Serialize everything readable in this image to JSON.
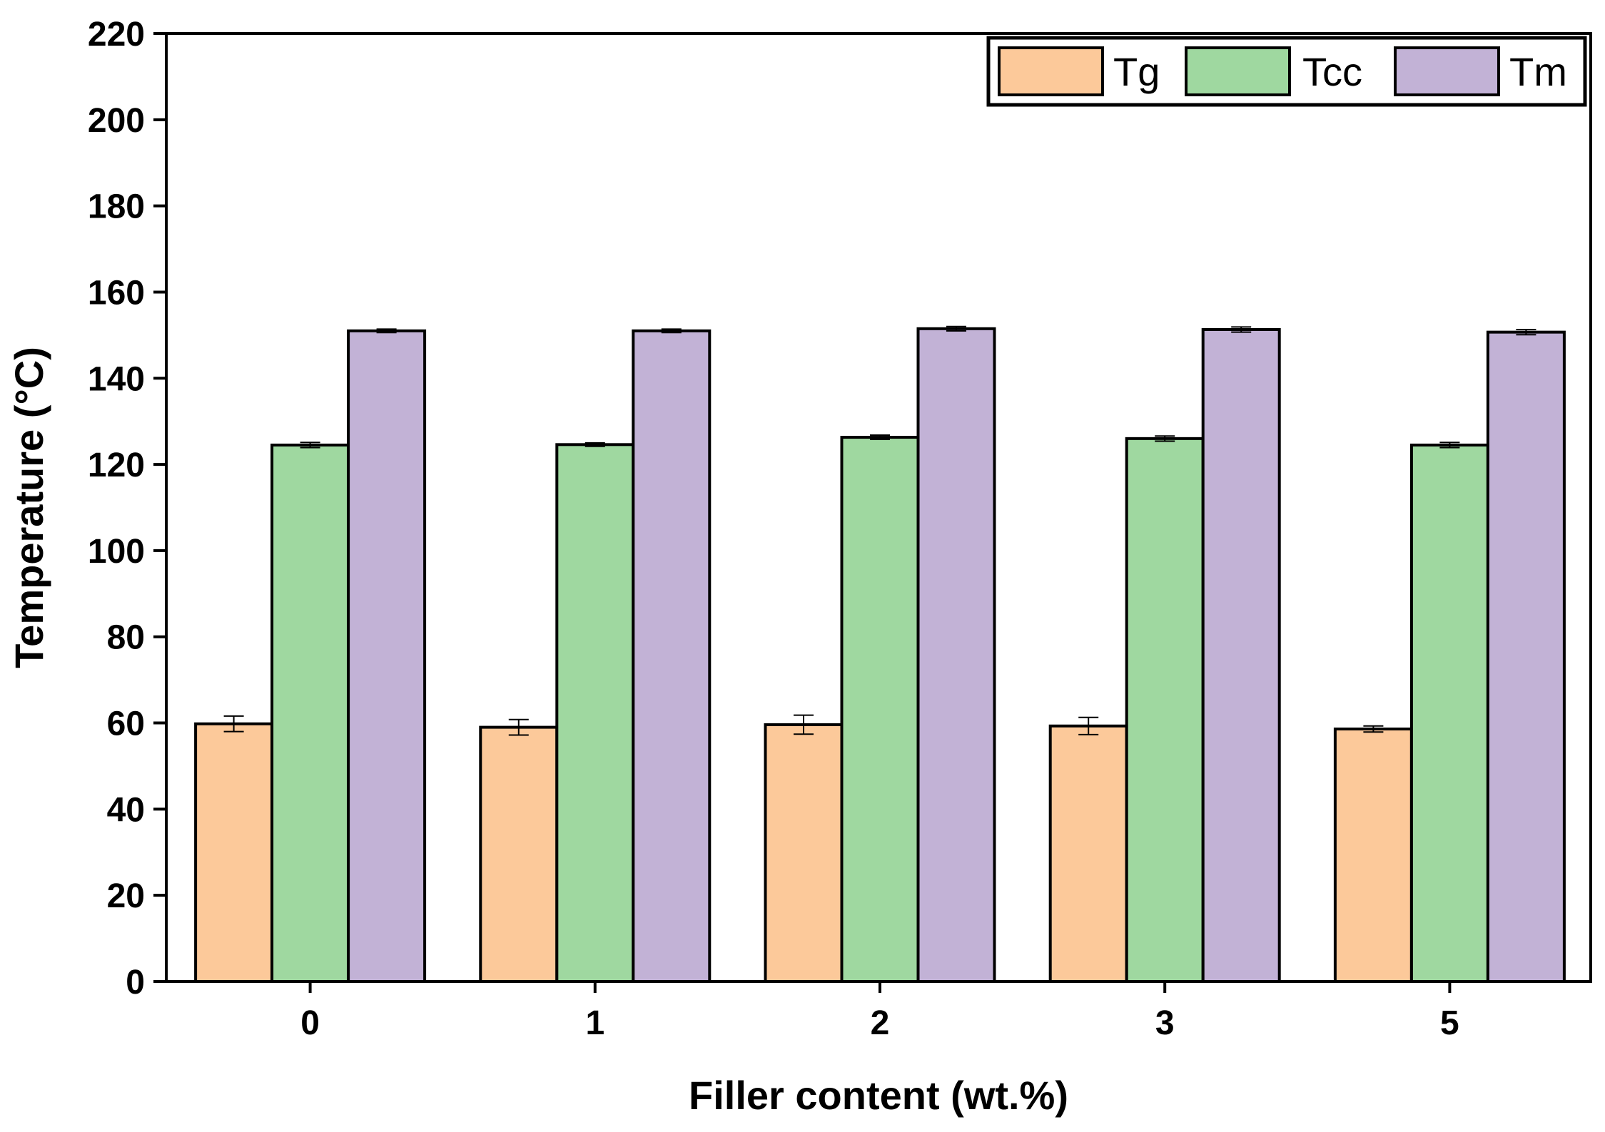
{
  "chart_data": {
    "type": "bar",
    "title": "",
    "xlabel": "Filler content (wt.%)",
    "ylabel": "Temperature (°C)",
    "categories": [
      "0",
      "1",
      "2",
      "3",
      "5"
    ],
    "ylim": [
      0,
      220
    ],
    "yticks": [
      "0",
      "20",
      "40",
      "60",
      "80",
      "100",
      "120",
      "140",
      "160",
      "180",
      "200",
      "220"
    ],
    "grid": false,
    "legend_position": "top-right",
    "series": [
      {
        "name": "Tg",
        "color": "#FCC99A",
        "values": [
          59.8,
          59.0,
          59.6,
          59.3,
          58.6
        ],
        "errors": [
          1.8,
          1.8,
          2.2,
          2.0,
          0.7
        ]
      },
      {
        "name": "Tcc",
        "color": "#9FD8A0",
        "values": [
          124.5,
          124.6,
          126.3,
          126.0,
          124.5
        ],
        "errors": [
          0.6,
          0.4,
          0.5,
          0.6,
          0.6
        ]
      },
      {
        "name": "Tm",
        "color": "#C2B2D6",
        "values": [
          151.0,
          151.0,
          151.5,
          151.3,
          150.7
        ],
        "errors": [
          0.4,
          0.4,
          0.5,
          0.6,
          0.6
        ]
      }
    ]
  }
}
